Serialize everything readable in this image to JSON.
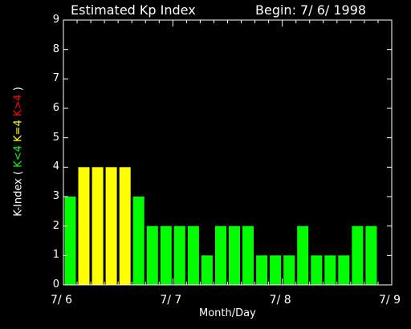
{
  "chart_data": {
    "type": "bar",
    "title_left": "Estimated Kp Index",
    "title_right": "Begin: 7/ 6/ 1998",
    "xlabel": "Month/Day",
    "ylabel_prefix": "K-Index (",
    "ylabel_low": "K<4",
    "ylabel_mid": "K=4",
    "ylabel_high": "K>4",
    "ylabel_suffix": ")",
    "x_tick_labels": [
      "7/ 6",
      "7/ 7",
      "7/ 8",
      "7/ 9"
    ],
    "y_tick_labels": [
      "0",
      "1",
      "2",
      "3",
      "4",
      "5",
      "6",
      "7",
      "8",
      "9"
    ],
    "ylim": [
      0,
      9
    ],
    "x_range_days": [
      0,
      3
    ],
    "bar_interval_hours": 3,
    "values": [
      3,
      4,
      4,
      4,
      4,
      3,
      2,
      2,
      2,
      2,
      1,
      2,
      2,
      2,
      1,
      1,
      1,
      2,
      1,
      1,
      1,
      2,
      2
    ],
    "colors": {
      "low": "#00ff00",
      "mid": "#ffff00",
      "high": "#ff0000",
      "axis": "#ffffff",
      "background": "#000000"
    }
  }
}
